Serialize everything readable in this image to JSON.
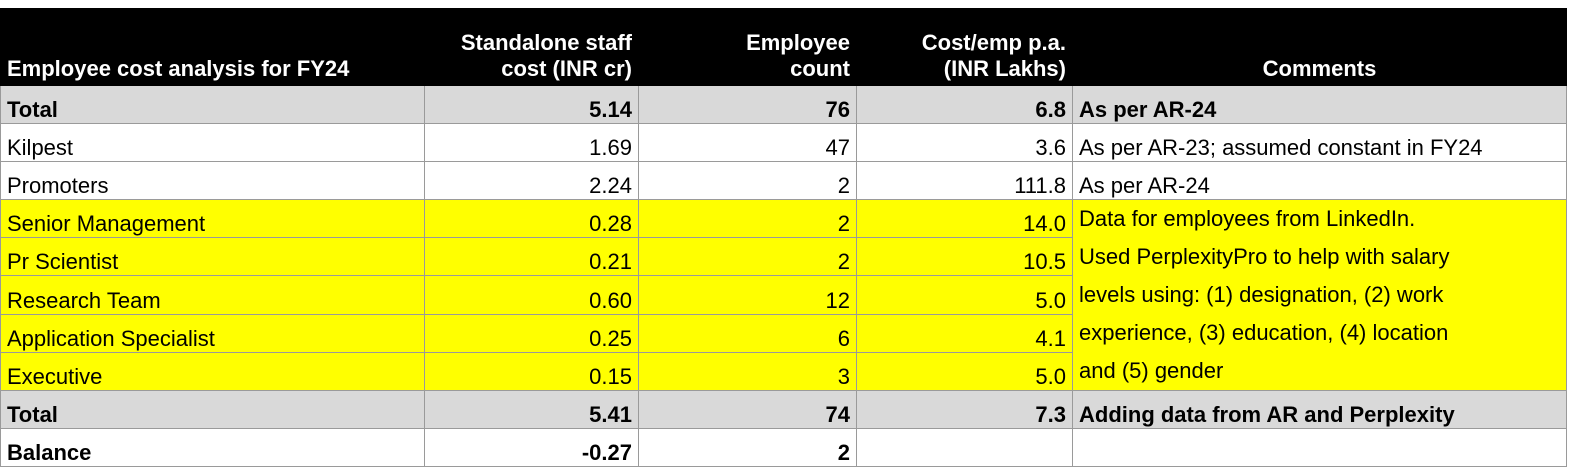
{
  "header": {
    "col1": "Employee cost analysis for FY24",
    "col2_line1": "Standalone staff",
    "col2_line2": "cost (INR cr)",
    "col3_line1": "Employee",
    "col3_line2": "count",
    "col4_line1": "Cost/emp p.a.",
    "col4_line2": "(INR Lakhs)",
    "col5": "Comments"
  },
  "rows": [
    {
      "label": "Total",
      "cost": "5.14",
      "count": "76",
      "per_emp": "6.8",
      "comment": "As per AR-24"
    },
    {
      "label": "Kilpest",
      "cost": "1.69",
      "count": "47",
      "per_emp": "3.6",
      "comment": "As per AR-23; assumed constant in FY24"
    },
    {
      "label": "Promoters",
      "cost": "2.24",
      "count": "2",
      "per_emp": "111.8",
      "comment": "As per AR-24"
    },
    {
      "label": "Senior Management",
      "cost": "0.28",
      "count": "2",
      "per_emp": "14.0"
    },
    {
      "label": "Pr Scientist",
      "cost": "0.21",
      "count": "2",
      "per_emp": "10.5"
    },
    {
      "label": "Research Team",
      "cost": "0.60",
      "count": "12",
      "per_emp": "5.0"
    },
    {
      "label": "Application Specialist",
      "cost": "0.25",
      "count": "6",
      "per_emp": "4.1"
    },
    {
      "label": "Executive",
      "cost": "0.15",
      "count": "3",
      "per_emp": "5.0"
    },
    {
      "label": "Total",
      "cost": "5.41",
      "count": "74",
      "per_emp": "7.3",
      "comment": "Adding data from AR and Perplexity"
    },
    {
      "label": "Balance",
      "cost": "-0.27",
      "count": "2",
      "per_emp": "",
      "comment": ""
    }
  ],
  "merged_comment_lines": [
    "Data for employees from LinkedIn.",
    "Used PerplexityPro to help with salary",
    "levels using: (1) designation, (2) work",
    "experience, (3) education, (4) location",
    "and (5) gender"
  ],
  "colors": {
    "header_bg": "#000000",
    "total_bg": "#d9d9d9",
    "highlight_bg": "#ffff00"
  }
}
